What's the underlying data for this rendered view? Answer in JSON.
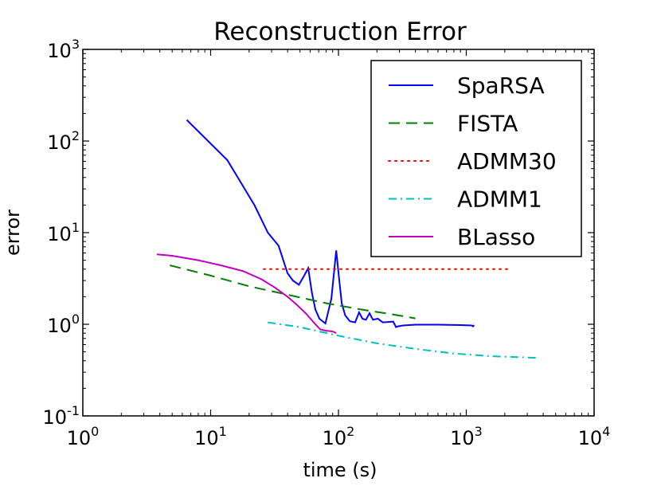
{
  "chart_data": {
    "type": "line",
    "title": "Reconstruction Error",
    "xlabel": "time (s)",
    "ylabel": "error",
    "xscale": "log",
    "yscale": "log",
    "xlim": [
      1,
      10000
    ],
    "ylim": [
      0.1,
      1000
    ],
    "x_ticks": [
      {
        "value": 1,
        "base": "10",
        "exp": "0"
      },
      {
        "value": 10,
        "base": "10",
        "exp": "1"
      },
      {
        "value": 100,
        "base": "10",
        "exp": "2"
      },
      {
        "value": 1000,
        "base": "10",
        "exp": "3"
      },
      {
        "value": 10000,
        "base": "10",
        "exp": "4"
      }
    ],
    "y_ticks": [
      {
        "value": 0.1,
        "base": "10",
        "exp": "-1"
      },
      {
        "value": 1,
        "base": "10",
        "exp": "0"
      },
      {
        "value": 10,
        "base": "10",
        "exp": "1"
      },
      {
        "value": 100,
        "base": "10",
        "exp": "2"
      },
      {
        "value": 1000,
        "base": "10",
        "exp": "3"
      }
    ],
    "grid": false,
    "legend_position": "top-right",
    "series": [
      {
        "name": "SpaRSA",
        "color": "#0000ff",
        "style": "solid",
        "points": [
          [
            6.5,
            170
          ],
          [
            13.5,
            62
          ],
          [
            22,
            20
          ],
          [
            28,
            10
          ],
          [
            34,
            7.2
          ],
          [
            40,
            3.6
          ],
          [
            44,
            3.0
          ],
          [
            49,
            2.7
          ],
          [
            54,
            3.4
          ],
          [
            58,
            4.1
          ],
          [
            62,
            2.2
          ],
          [
            66,
            1.45
          ],
          [
            71,
            1.15
          ],
          [
            79,
            1.02
          ],
          [
            88,
            1.9
          ],
          [
            96,
            6.4
          ],
          [
            101,
            3.2
          ],
          [
            106,
            1.7
          ],
          [
            113,
            1.25
          ],
          [
            123,
            1.08
          ],
          [
            135,
            1.05
          ],
          [
            145,
            1.35
          ],
          [
            154,
            1.15
          ],
          [
            164,
            1.12
          ],
          [
            175,
            1.32
          ],
          [
            186,
            1.12
          ],
          [
            203,
            1.15
          ],
          [
            222,
            1.05
          ],
          [
            246,
            1.06
          ],
          [
            268,
            1.07
          ],
          [
            282,
            0.93
          ],
          [
            292,
            0.95
          ],
          [
            320,
            0.97
          ],
          [
            400,
            0.99
          ],
          [
            600,
            0.99
          ],
          [
            900,
            0.98
          ],
          [
            1100,
            0.97
          ],
          [
            1130,
            0.95
          ],
          [
            1150,
            0.98
          ]
        ]
      },
      {
        "name": "FISTA",
        "color": "#008000",
        "style": "dashed",
        "points": [
          [
            4.8,
            4.4
          ],
          [
            10,
            3.4
          ],
          [
            20,
            2.6
          ],
          [
            40,
            2.1
          ],
          [
            80,
            1.7
          ],
          [
            150,
            1.45
          ],
          [
            250,
            1.3
          ],
          [
            400,
            1.16
          ]
        ]
      },
      {
        "name": "ADMM30",
        "color": "#ff0000",
        "style": "dotted",
        "points": [
          [
            26,
            4.0
          ],
          [
            2200,
            4.0
          ]
        ]
      },
      {
        "name": "ADMM1",
        "color": "#00bfbf",
        "style": "dashdot",
        "points": [
          [
            28,
            1.05
          ],
          [
            50,
            0.93
          ],
          [
            100,
            0.75
          ],
          [
            200,
            0.62
          ],
          [
            400,
            0.54
          ],
          [
            800,
            0.48
          ],
          [
            1500,
            0.45
          ],
          [
            3600,
            0.43
          ]
        ]
      },
      {
        "name": "BLasso",
        "color": "#bf00bf",
        "style": "solid",
        "points": [
          [
            3.8,
            5.8
          ],
          [
            5,
            5.6
          ],
          [
            8,
            5.0
          ],
          [
            12,
            4.4
          ],
          [
            18,
            3.8
          ],
          [
            25,
            3.1
          ],
          [
            32,
            2.5
          ],
          [
            40,
            2.0
          ],
          [
            48,
            1.6
          ],
          [
            56,
            1.3
          ],
          [
            64,
            1.05
          ],
          [
            72,
            0.88
          ],
          [
            80,
            0.85
          ],
          [
            88,
            0.84
          ],
          [
            93,
            0.82
          ],
          [
            96,
            0.8
          ]
        ]
      }
    ]
  }
}
